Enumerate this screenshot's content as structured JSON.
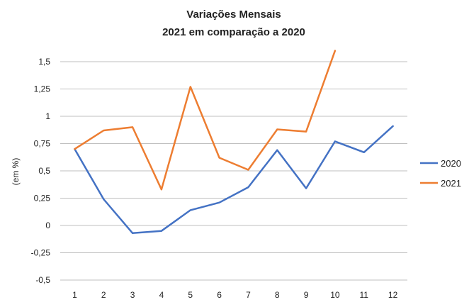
{
  "chart_data": {
    "type": "line",
    "title_line1": "Variações Mensais",
    "title_line2": "2021 em comparação a 2020",
    "ylabel": "(em %)",
    "xlabel": "",
    "x": [
      1,
      2,
      3,
      4,
      5,
      6,
      7,
      8,
      9,
      10,
      11,
      12
    ],
    "x_tick_labels": [
      "1",
      "2",
      "3",
      "4",
      "5",
      "6",
      "7",
      "8",
      "9",
      "10",
      "11",
      "12"
    ],
    "ylim": [
      -0.5,
      1.5
    ],
    "y_ticks": [
      1.5,
      1.25,
      1,
      0.75,
      0.5,
      0.25,
      0,
      -0.25,
      -0.5
    ],
    "y_tick_labels": [
      "1,5",
      "1,25",
      "1",
      "0,75",
      "0,5",
      "0,25",
      "0",
      "-0,25",
      "-0,5"
    ],
    "grid": true,
    "legend_position": "right",
    "series": [
      {
        "name": "2020",
        "color": "#4472C4",
        "values": [
          0.7,
          0.24,
          -0.07,
          -0.05,
          0.14,
          0.21,
          0.35,
          0.69,
          0.34,
          0.77,
          0.67,
          0.91
        ]
      },
      {
        "name": "2021",
        "color": "#ED7D31",
        "values": [
          0.7,
          0.87,
          0.9,
          0.33,
          1.27,
          0.62,
          0.51,
          0.88,
          0.86,
          1.6,
          null,
          null
        ]
      }
    ]
  }
}
